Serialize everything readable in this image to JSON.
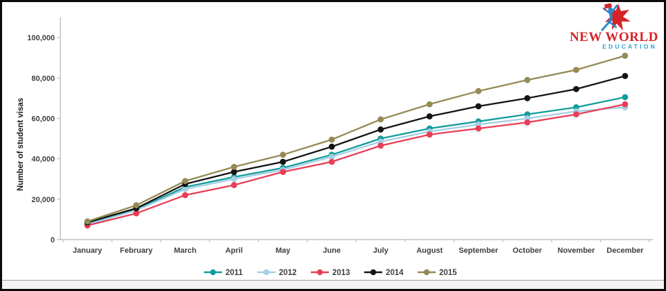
{
  "logo": {
    "name": "New World Education",
    "line1": "NEW WORLD",
    "line2": "EDUCATION",
    "line1_color": "#d42427",
    "line2_color": "#2e9fd4",
    "star_color": "#d42427",
    "figure_color": "#2e86c8"
  },
  "chart_data": {
    "type": "line",
    "title": "",
    "xlabel": "",
    "ylabel": "Number of student visas",
    "ylim": [
      0,
      110000
    ],
    "yticks": [
      0,
      20000,
      40000,
      60000,
      80000,
      100000
    ],
    "grid": false,
    "legend_position": "bottom",
    "x": [
      "January",
      "February",
      "March",
      "April",
      "May",
      "June",
      "July",
      "August",
      "September",
      "October",
      "November",
      "December"
    ],
    "series": [
      {
        "name": "2011",
        "color": "#149c9c",
        "values": [
          8000,
          15000,
          26000,
          31000,
          35500,
          42000,
          50000,
          55000,
          58500,
          62000,
          65500,
          70500
        ]
      },
      {
        "name": "2012",
        "color": "#a5cfe4",
        "values": [
          7500,
          14500,
          25000,
          30000,
          34500,
          41000,
          48500,
          53500,
          57000,
          60000,
          63500,
          65500
        ]
      },
      {
        "name": "2013",
        "color": "#e83e56",
        "values": [
          7000,
          13000,
          22000,
          27000,
          33500,
          38500,
          46500,
          52000,
          55000,
          58000,
          62000,
          67000
        ]
      },
      {
        "name": "2014",
        "color": "#141414",
        "values": [
          8500,
          15500,
          27500,
          33500,
          38500,
          46000,
          54500,
          61000,
          66000,
          70000,
          74500,
          81000
        ]
      },
      {
        "name": "2015",
        "color": "#948a54",
        "values": [
          9000,
          17000,
          29000,
          36000,
          42000,
          49500,
          59500,
          67000,
          73500,
          79000,
          84000,
          91000
        ]
      }
    ],
    "axis_color": "#bfbfbf"
  }
}
